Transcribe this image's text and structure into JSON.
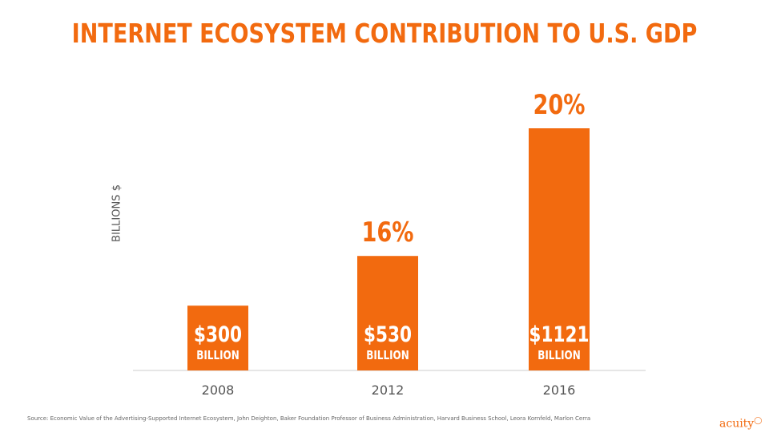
{
  "colors": {
    "accent": "#f26a0f",
    "axis": "#cccccc",
    "tick_text": "#555555"
  },
  "brand": {
    "logo_text": "acuity"
  },
  "source_text": "Source: Economic Value of the Advertising-Supported Internet Ecosystem, John Deighton, Baker Foundation Professor of Business Administration, Harvard Business School, Leora Kornfeld, Marlon Cerra",
  "chart_data": {
    "type": "bar",
    "title": "INTERNET ECOSYSTEM CONTRIBUTION TO U.S. GDP",
    "xlabel": "",
    "ylabel": "BILLIONS $",
    "categories": [
      "2008",
      "2012",
      "2016"
    ],
    "values": [
      300,
      530,
      1121
    ],
    "value_labels": [
      "$300",
      "$530",
      "$1121"
    ],
    "value_unit_label": "BILLION",
    "annotations": [
      "",
      "16%",
      "20%"
    ],
    "ylim": [
      0,
      1121
    ],
    "grid": false,
    "legend": "none"
  }
}
